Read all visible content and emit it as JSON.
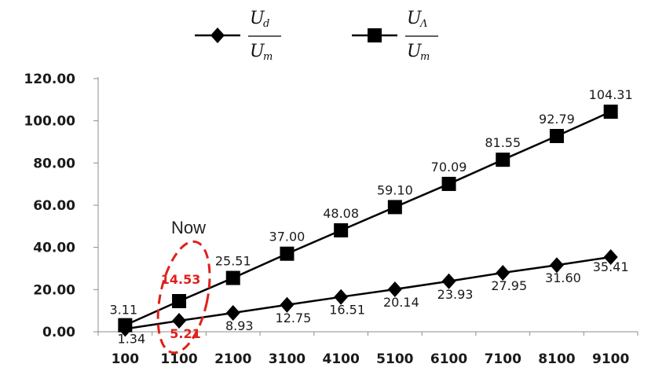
{
  "chart_data": {
    "type": "line",
    "categories": [
      "100",
      "1100",
      "2100",
      "3100",
      "4100",
      "5100",
      "6100",
      "7100",
      "8100",
      "9100"
    ],
    "series": [
      {
        "name": "Ud/Um",
        "marker": "diamond",
        "values": [
          1.34,
          5.21,
          8.93,
          12.75,
          16.51,
          20.14,
          23.93,
          27.95,
          31.6,
          35.41
        ],
        "labels": [
          "1.34",
          "5.21",
          "8.93",
          "12.75",
          "16.51",
          "20.14",
          "23.93",
          "27.95",
          "31.60",
          "35.41"
        ]
      },
      {
        "name": "UΛ/Um",
        "marker": "square",
        "values": [
          3.11,
          14.53,
          25.51,
          37.0,
          48.08,
          59.1,
          70.09,
          81.55,
          92.79,
          104.31
        ],
        "labels": [
          "3.11",
          "14.53",
          "25.51",
          "37.00",
          "48.08",
          "59.10",
          "70.09",
          "81.55",
          "92.79",
          "104.31"
        ]
      }
    ],
    "yticks": [
      "0.00",
      "20.00",
      "40.00",
      "60.00",
      "80.00",
      "100.00",
      "120.00"
    ],
    "ylim": [
      0,
      120
    ],
    "legend_position": "top",
    "legend": [
      {
        "numerator": "U",
        "numerator_sub": "d",
        "denominator": "U",
        "denominator_sub": "m"
      },
      {
        "numerator": "U",
        "numerator_sub": "Λ",
        "denominator": "U",
        "denominator_sub": "m"
      }
    ],
    "annotation": {
      "text": "Now",
      "category_index": 1
    },
    "highlight_color": "#e0201b",
    "line_color": "#000000"
  }
}
